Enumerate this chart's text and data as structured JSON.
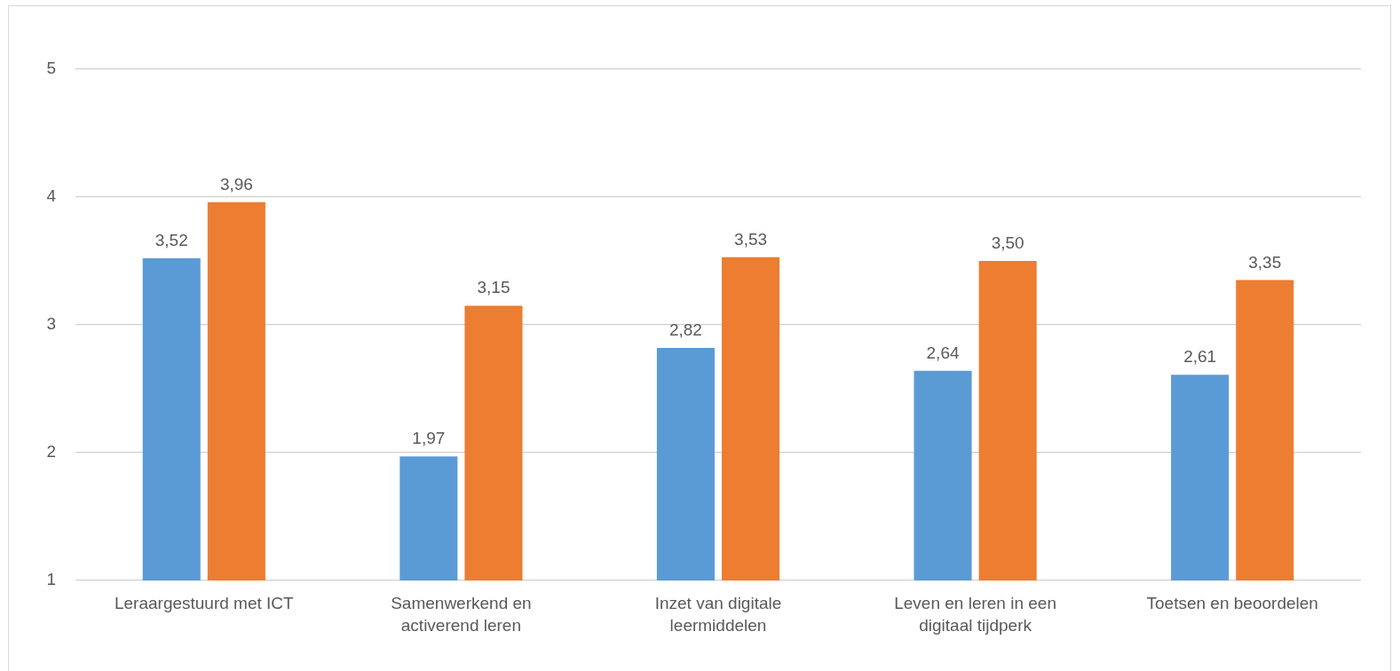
{
  "chart_data": {
    "type": "bar",
    "categories": [
      "Leraargestuurd met ICT",
      "Samenwerkend en activerend leren",
      "Inzet van digitale leermiddelen",
      "Leven en leren in een digitaal tijdperk",
      "Toetsen en beoordelen"
    ],
    "series": [
      {
        "color": "#5b9bd5",
        "values": [
          3.52,
          1.97,
          2.82,
          2.64,
          2.61
        ],
        "value_labels": [
          "3,52",
          "1,97",
          "2,82",
          "2,64",
          "2,61"
        ]
      },
      {
        "color": "#ed7d31",
        "values": [
          3.96,
          3.15,
          3.53,
          3.5,
          3.35
        ],
        "value_labels": [
          "3,96",
          "3,15",
          "3,53",
          "3,50",
          "3,35"
        ]
      }
    ],
    "ylim": [
      1,
      5
    ],
    "yticks": [
      1,
      2,
      3,
      4,
      5
    ],
    "grid": "y"
  }
}
